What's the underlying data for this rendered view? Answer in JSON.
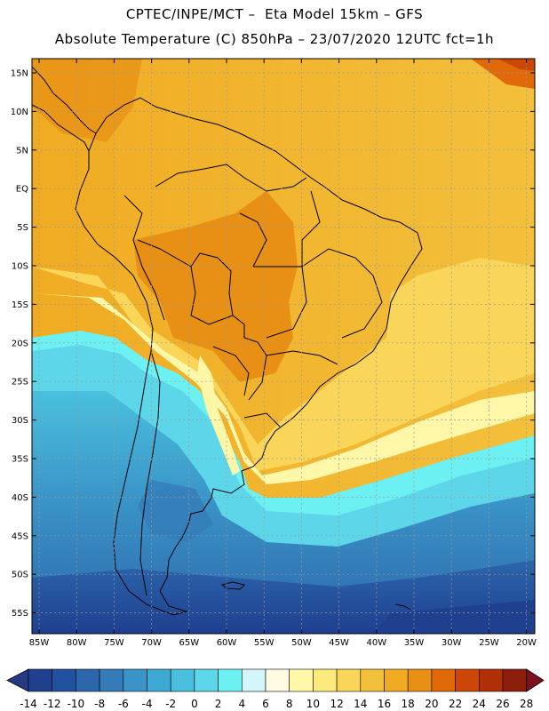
{
  "title_line1": "CPTEC/INPE/MCT –  Eta Model 15km – GFS",
  "title_line2": "Absolute Temperature (C) 850hPa – 23/07/2020 12UTC fct=1h",
  "lat_labels": [
    "15N",
    "10N",
    "5N",
    "EQ",
    "5S",
    "10S",
    "15S",
    "20S",
    "25S",
    "30S",
    "35S",
    "40S",
    "45S",
    "50S",
    "55S"
  ],
  "lon_labels": [
    "85W",
    "80W",
    "75W",
    "70W",
    "65W",
    "60W",
    "55W",
    "50W",
    "45W",
    "40W",
    "35W",
    "30W",
    "25W",
    "20W"
  ],
  "colorbar": {
    "labels": [
      "-14",
      "-12",
      "-10",
      "-8",
      "-6",
      "-4",
      "-2",
      "0",
      "2",
      "4",
      "6",
      "8",
      "10",
      "12",
      "14",
      "16",
      "18",
      "20",
      "22",
      "24",
      "26",
      "28"
    ],
    "colors": [
      "#1f3f8f",
      "#21519f",
      "#2c66ab",
      "#347cb8",
      "#3a94c7",
      "#3eaad3",
      "#4ac0de",
      "#5cd6e8",
      "#6cf0f2",
      "#d2f6fa",
      "#fffbe2",
      "#fff7a8",
      "#fdea7c",
      "#f9d55a",
      "#f3c03c",
      "#f0ab22",
      "#e89016",
      "#e06a0a",
      "#cc4706",
      "#b02f07",
      "#8c1e0b"
    ],
    "under_color": "#253a82",
    "over_color": "#7f1020"
  },
  "icons": {
    "coastline": "coastline-icon"
  }
}
